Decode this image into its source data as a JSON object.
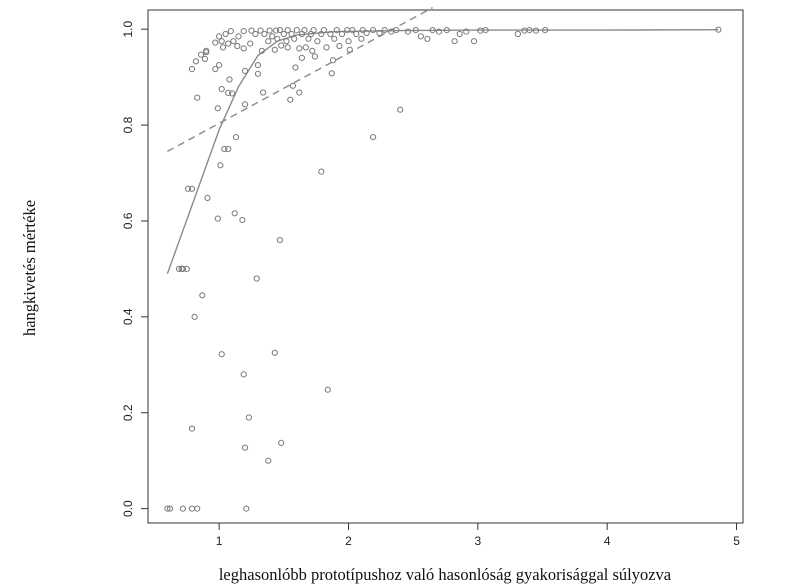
{
  "chart_data": {
    "type": "scatter",
    "title": "",
    "xlabel": "leghasonlóbb prototípushoz való hasonlóság gyakorisággal súlyozva",
    "ylabel": "hangkivetés mértéke",
    "xlim": [
      0.45,
      5.05
    ],
    "ylim": [
      -0.03,
      1.04
    ],
    "x_ticks": [
      1,
      2,
      3,
      4,
      5
    ],
    "y_ticks": [
      0.0,
      0.2,
      0.4,
      0.6,
      0.8,
      1.0
    ],
    "grid": false,
    "legend": "none",
    "colors": {
      "points": "#7a7a7a",
      "lines": "#8a8a8a",
      "axis": "#333333"
    },
    "points": [
      [
        0.6,
        0.0
      ],
      [
        0.62,
        0.0
      ],
      [
        0.72,
        0.0
      ],
      [
        0.79,
        0.0
      ],
      [
        0.83,
        0.0
      ],
      [
        1.21,
        0.0
      ],
      [
        1.38,
        0.1
      ],
      [
        1.2,
        0.127
      ],
      [
        1.48,
        0.137
      ],
      [
        0.79,
        0.167
      ],
      [
        1.23,
        0.19
      ],
      [
        1.84,
        0.248
      ],
      [
        1.19,
        0.28
      ],
      [
        1.02,
        0.322
      ],
      [
        1.43,
        0.325
      ],
      [
        0.81,
        0.4
      ],
      [
        0.87,
        0.445
      ],
      [
        1.29,
        0.48
      ],
      [
        0.69,
        0.5
      ],
      [
        0.71,
        0.5
      ],
      [
        0.72,
        0.5
      ],
      [
        0.75,
        0.5
      ],
      [
        1.47,
        0.56
      ],
      [
        1.18,
        0.602
      ],
      [
        0.99,
        0.605
      ],
      [
        1.12,
        0.616
      ],
      [
        0.91,
        0.648
      ],
      [
        0.76,
        0.667
      ],
      [
        0.79,
        0.667
      ],
      [
        1.79,
        0.703
      ],
      [
        1.01,
        0.716
      ],
      [
        1.04,
        0.75
      ],
      [
        1.07,
        0.75
      ],
      [
        1.13,
        0.775
      ],
      [
        2.19,
        0.775
      ],
      [
        2.4,
        0.832
      ],
      [
        0.99,
        0.835
      ],
      [
        1.2,
        0.843
      ],
      [
        0.83,
        0.857
      ],
      [
        1.55,
        0.853
      ],
      [
        1.07,
        0.867
      ],
      [
        1.34,
        0.868
      ],
      [
        1.1,
        0.866
      ],
      [
        1.62,
        0.868
      ],
      [
        1.57,
        0.882
      ],
      [
        1.02,
        0.875
      ],
      [
        1.08,
        0.895
      ],
      [
        1.3,
        0.907
      ],
      [
        1.2,
        0.913
      ],
      [
        1.87,
        0.908
      ],
      [
        0.79,
        0.917
      ],
      [
        0.97,
        0.917
      ],
      [
        1.0,
        0.925
      ],
      [
        1.3,
        0.925
      ],
      [
        1.59,
        0.92
      ],
      [
        0.82,
        0.933
      ],
      [
        0.89,
        0.938
      ],
      [
        1.88,
        0.935
      ],
      [
        1.64,
        0.94
      ],
      [
        1.74,
        0.943
      ],
      [
        0.86,
        0.947
      ],
      [
        0.9,
        0.955
      ],
      [
        1.33,
        0.955
      ],
      [
        1.43,
        0.957
      ],
      [
        2.01,
        0.957
      ],
      [
        2.97,
        0.975
      ],
      [
        0.9,
        0.952
      ],
      [
        1.03,
        0.962
      ],
      [
        1.14,
        0.965
      ],
      [
        1.19,
        0.96
      ],
      [
        1.48,
        0.966
      ],
      [
        1.53,
        0.962
      ],
      [
        1.62,
        0.96
      ],
      [
        1.67,
        0.962
      ],
      [
        1.72,
        0.955
      ],
      [
        1.83,
        0.962
      ],
      [
        1.93,
        0.965
      ],
      [
        2.0,
        0.975
      ],
      [
        2.82,
        0.975
      ],
      [
        3.31,
        0.99
      ],
      [
        0.97,
        0.972
      ],
      [
        1.02,
        0.975
      ],
      [
        1.07,
        0.97
      ],
      [
        1.11,
        0.975
      ],
      [
        1.24,
        0.97
      ],
      [
        1.38,
        0.975
      ],
      [
        1.45,
        0.98
      ],
      [
        1.52,
        0.975
      ],
      [
        1.58,
        0.98
      ],
      [
        1.69,
        0.98
      ],
      [
        1.76,
        0.975
      ],
      [
        1.89,
        0.98
      ],
      [
        2.1,
        0.98
      ],
      [
        2.56,
        0.985
      ],
      [
        2.61,
        0.98
      ],
      [
        2.86,
        0.99
      ],
      [
        1.0,
        0.985
      ],
      [
        1.05,
        0.99
      ],
      [
        1.15,
        0.985
      ],
      [
        1.28,
        0.99
      ],
      [
        1.35,
        0.99
      ],
      [
        1.41,
        0.985
      ],
      [
        1.5,
        0.99
      ],
      [
        1.56,
        0.99
      ],
      [
        1.64,
        0.99
      ],
      [
        1.71,
        0.99
      ],
      [
        1.79,
        0.99
      ],
      [
        1.86,
        0.99
      ],
      [
        1.95,
        0.99
      ],
      [
        2.06,
        0.99
      ],
      [
        2.14,
        0.992
      ],
      [
        2.24,
        0.992
      ],
      [
        2.33,
        0.995
      ],
      [
        2.46,
        0.995
      ],
      [
        2.7,
        0.995
      ],
      [
        2.91,
        0.995
      ],
      [
        3.02,
        0.997
      ],
      [
        3.36,
        0.997
      ],
      [
        3.45,
        0.997
      ],
      [
        1.09,
        0.996
      ],
      [
        1.19,
        0.996
      ],
      [
        1.25,
        0.997
      ],
      [
        1.32,
        0.997
      ],
      [
        1.39,
        0.997
      ],
      [
        1.44,
        0.997
      ],
      [
        1.47,
        0.998
      ],
      [
        1.53,
        0.998
      ],
      [
        1.6,
        0.998
      ],
      [
        1.66,
        0.998
      ],
      [
        1.73,
        0.998
      ],
      [
        1.81,
        0.998
      ],
      [
        1.91,
        0.998
      ],
      [
        1.99,
        0.998
      ],
      [
        2.03,
        0.998
      ],
      [
        2.11,
        0.998
      ],
      [
        2.19,
        0.998
      ],
      [
        2.28,
        0.998
      ],
      [
        2.37,
        0.998
      ],
      [
        2.52,
        0.998
      ],
      [
        2.65,
        0.998
      ],
      [
        2.76,
        0.998
      ],
      [
        3.06,
        0.998
      ],
      [
        3.4,
        0.998
      ],
      [
        3.52,
        0.998
      ],
      [
        4.86,
        0.999
      ]
    ],
    "lines": [
      {
        "style": "solid",
        "points": [
          [
            0.6,
            0.49
          ],
          [
            0.8,
            0.64
          ],
          [
            1.0,
            0.79
          ],
          [
            1.15,
            0.88
          ],
          [
            1.3,
            0.945
          ],
          [
            1.45,
            0.975
          ],
          [
            1.6,
            0.988
          ],
          [
            1.9,
            0.995
          ],
          [
            2.4,
            0.997
          ],
          [
            3.0,
            0.998
          ],
          [
            4.0,
            0.998
          ],
          [
            4.86,
            0.999
          ]
        ]
      },
      {
        "style": "dashed",
        "points": [
          [
            0.6,
            0.745
          ],
          [
            2.65,
            1.045
          ]
        ]
      }
    ]
  }
}
